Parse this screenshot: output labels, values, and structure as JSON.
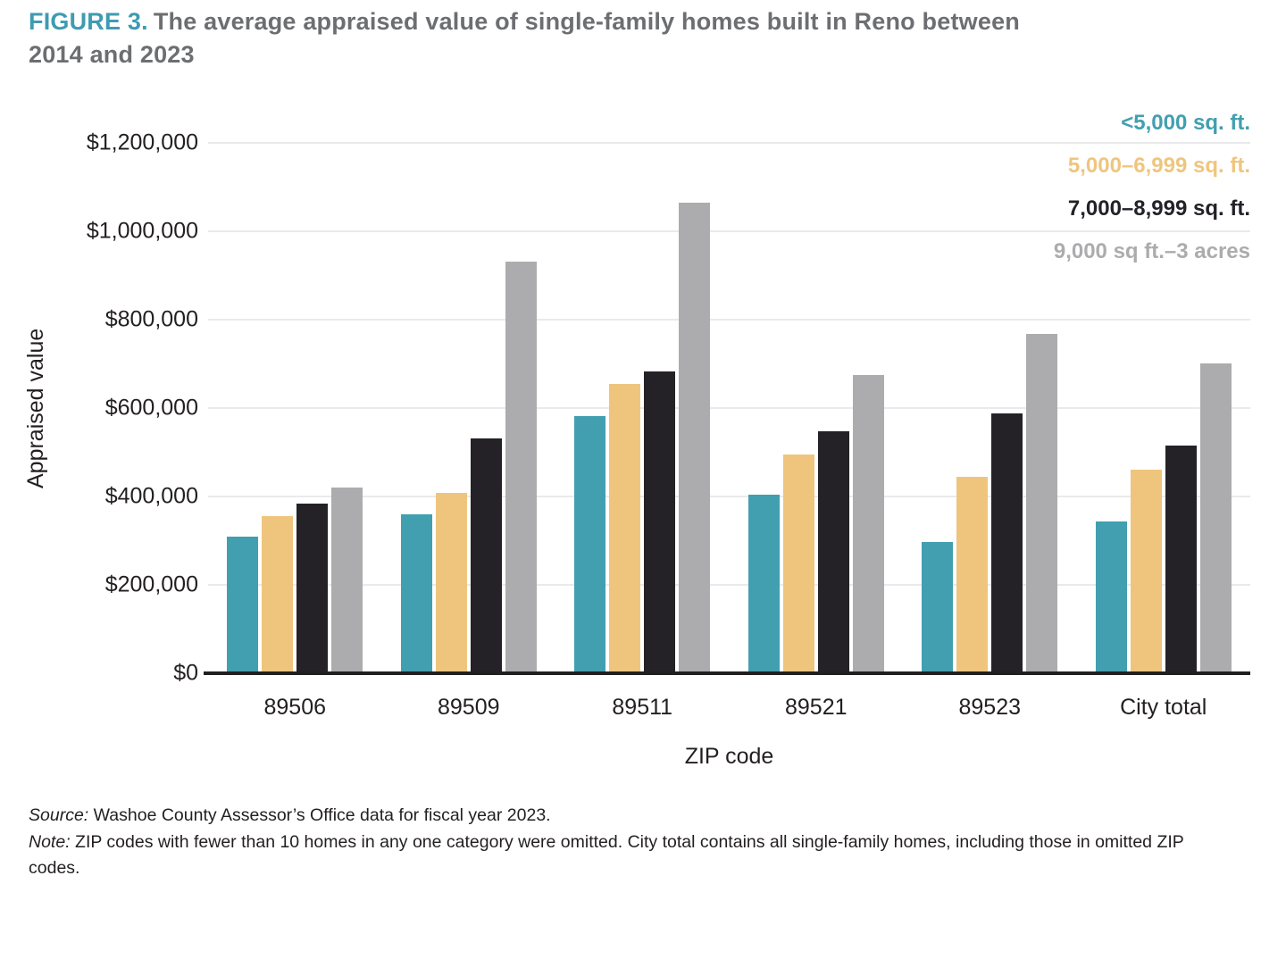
{
  "title": {
    "prefix": "FIGURE 3.",
    "line1": "The average appraised value of single-family homes built in Reno between",
    "line2": "2014 and 2023"
  },
  "legend": [
    {
      "label": "<5,000 sq. ft.",
      "color": "#429fb0"
    },
    {
      "label": "5,000–6,999 sq. ft.",
      "color": "#efc57e"
    },
    {
      "label": "7,000–8,999 sq. ft.",
      "color": "#242127"
    },
    {
      "label": "9,000 sq ft.–3 acres",
      "color": "#acacae"
    }
  ],
  "chart_data": {
    "type": "bar",
    "title": "The average appraised value of single-family homes built in Reno between 2014 and 2023",
    "categories": [
      "89506",
      "89509",
      "89511",
      "89521",
      "89523",
      "City total"
    ],
    "series": [
      {
        "name": "<5,000 sq. ft.",
        "color": "#429fb0",
        "values": [
          310000,
          359000,
          582000,
          405000,
          296000,
          343000
        ]
      },
      {
        "name": "5,000–6,999 sq. ft.",
        "color": "#efc57e",
        "values": [
          355000,
          409000,
          655000,
          494000,
          445000,
          461000
        ]
      },
      {
        "name": "7,000–8,999 sq. ft.",
        "color": "#242127",
        "values": [
          383000,
          531000,
          682000,
          547000,
          587000,
          515000
        ]
      },
      {
        "name": "9,000 sq ft.–3 acres",
        "color": "#acacae",
        "values": [
          421000,
          932000,
          1064000,
          675000,
          768000,
          701000
        ]
      }
    ],
    "xlabel": "ZIP code",
    "ylabel": "Appraised value",
    "ylim": [
      0,
      1200000
    ],
    "ytick_step": 200000,
    "yticks_labels": [
      "$0",
      "$200,000",
      "$400,000",
      "$600,000",
      "$800,000",
      "$1,000,000",
      "$1,200,000"
    ],
    "grid": true,
    "legend_position": "top-right"
  },
  "footer": {
    "source_label": "Source:",
    "source_text": "Washoe County Assessor’s Office data for fiscal year 2023.",
    "note_label": "Note:",
    "note_text": "ZIP codes with fewer than 10 homes in any one category were omitted. City total contains all single-family homes, including those in omitted ZIP codes."
  }
}
